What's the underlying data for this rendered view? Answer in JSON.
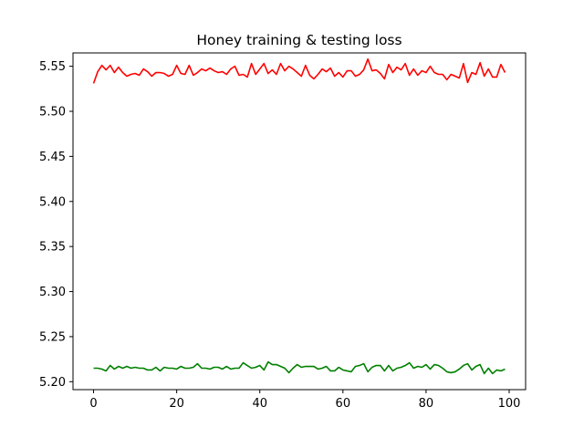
{
  "chart_data": {
    "type": "line",
    "title": "Honey training & testing loss",
    "xlabel": "",
    "ylabel": "",
    "xlim": [
      -4.95,
      103.95
    ],
    "ylim": [
      5.1912,
      5.5648
    ],
    "xticks": [
      0,
      20,
      40,
      60,
      80,
      100
    ],
    "yticks": [
      5.2,
      5.25,
      5.3,
      5.35,
      5.4,
      5.45,
      5.5,
      5.55
    ],
    "ytick_labels": [
      "5.20",
      "5.25",
      "5.30",
      "5.35",
      "5.40",
      "5.45",
      "5.50",
      "5.55"
    ],
    "grid": false,
    "legend": "none",
    "series": [
      {
        "color": "#ff0000",
        "x_start": 0,
        "x_step": 1,
        "values": [
          5.531,
          5.544,
          5.551,
          5.546,
          5.551,
          5.543,
          5.549,
          5.543,
          5.539,
          5.541,
          5.542,
          5.54,
          5.547,
          5.544,
          5.539,
          5.543,
          5.543,
          5.542,
          5.539,
          5.541,
          5.551,
          5.542,
          5.541,
          5.551,
          5.54,
          5.543,
          5.547,
          5.545,
          5.548,
          5.545,
          5.543,
          5.544,
          5.541,
          5.547,
          5.55,
          5.54,
          5.541,
          5.538,
          5.553,
          5.541,
          5.547,
          5.553,
          5.542,
          5.546,
          5.541,
          5.553,
          5.545,
          5.55,
          5.547,
          5.543,
          5.539,
          5.551,
          5.54,
          5.536,
          5.541,
          5.547,
          5.544,
          5.548,
          5.539,
          5.543,
          5.538,
          5.545,
          5.545,
          5.539,
          5.541,
          5.546,
          5.558,
          5.545,
          5.546,
          5.542,
          5.536,
          5.552,
          5.543,
          5.549,
          5.546,
          5.553,
          5.54,
          5.547,
          5.54,
          5.545,
          5.543,
          5.55,
          5.543,
          5.541,
          5.541,
          5.535,
          5.541,
          5.539,
          5.537,
          5.553,
          5.532,
          5.543,
          5.541,
          5.554,
          5.539,
          5.547,
          5.538,
          5.538,
          5.552,
          5.543
        ]
      },
      {
        "color": "#008000",
        "x_start": 0,
        "x_step": 1,
        "values": [
          5.215,
          5.215,
          5.214,
          5.212,
          5.218,
          5.214,
          5.217,
          5.215,
          5.217,
          5.215,
          5.216,
          5.215,
          5.215,
          5.213,
          5.213,
          5.216,
          5.212,
          5.216,
          5.215,
          5.215,
          5.214,
          5.217,
          5.215,
          5.215,
          5.216,
          5.22,
          5.215,
          5.215,
          5.214,
          5.216,
          5.216,
          5.214,
          5.217,
          5.214,
          5.215,
          5.215,
          5.221,
          5.218,
          5.215,
          5.216,
          5.218,
          5.213,
          5.222,
          5.219,
          5.219,
          5.217,
          5.215,
          5.21,
          5.215,
          5.219,
          5.216,
          5.217,
          5.217,
          5.217,
          5.214,
          5.215,
          5.217,
          5.212,
          5.212,
          5.216,
          5.213,
          5.212,
          5.211,
          5.217,
          5.218,
          5.22,
          5.211,
          5.216,
          5.218,
          5.218,
          5.212,
          5.218,
          5.212,
          5.215,
          5.216,
          5.218,
          5.221,
          5.215,
          5.217,
          5.216,
          5.219,
          5.214,
          5.219,
          5.218,
          5.215,
          5.211,
          5.21,
          5.211,
          5.214,
          5.218,
          5.22,
          5.213,
          5.217,
          5.219,
          5.209,
          5.215,
          5.209,
          5.213,
          5.212,
          5.214
        ]
      }
    ]
  }
}
